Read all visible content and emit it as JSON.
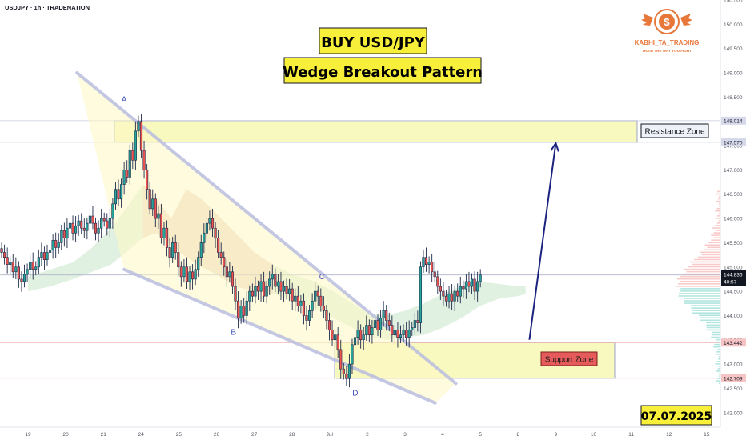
{
  "header": {
    "symbol_info": "USDJPY · 1h · TRADENATION"
  },
  "colors": {
    "bull": "#26a69a",
    "bear": "#ef5350",
    "candle_outline": "#1f2a4a",
    "cloud_green": "#c8e6c9",
    "cloud_red": "#f8c9c1",
    "wedge_line": "#b9bddf",
    "zone_fill": "#f6f7a8",
    "zone_border": "#9aa3c8",
    "arrow": "#1a237e",
    "price_badge": "#131722",
    "title_box": "#f7ef3a",
    "support_label_bg": "#e55a5a",
    "logo_orange": "#e8773a"
  },
  "logo": {
    "name": "KABHI_TA_TRADING",
    "tagline": "TRAIN THE WAY YOU FIGHT",
    "symbol": "$"
  },
  "chart_data": {
    "type": "candlestick",
    "title": "BUY USD/JPY",
    "subtitle": "Wedge Breakout Pattern",
    "date_label": "07.07.2025",
    "ylim": [
      141.7,
      150.5
    ],
    "y_ticks": [
      "142.000",
      "142.500",
      "143.000",
      "143.500",
      "144.000",
      "144.500",
      "145.000",
      "145.500",
      "146.000",
      "146.500",
      "147.000",
      "147.500",
      "148.000",
      "148.500",
      "149.000",
      "149.500",
      "150.000",
      "150.500"
    ],
    "x_ticks": [
      {
        "label": "19",
        "day": 0
      },
      {
        "label": "20",
        "day": 1
      },
      {
        "label": "21",
        "day": 2
      },
      {
        "label": "24",
        "day": 3
      },
      {
        "label": "25",
        "day": 4
      },
      {
        "label": "26",
        "day": 5
      },
      {
        "label": "27",
        "day": 6
      },
      {
        "label": "28",
        "day": 7
      },
      {
        "label": "Jul",
        "day": 8
      },
      {
        "label": "2",
        "day": 9
      },
      {
        "label": "3",
        "day": 10
      },
      {
        "label": "4",
        "day": 11
      },
      {
        "label": "5",
        "day": 12
      },
      {
        "label": "8",
        "day": 13
      },
      {
        "label": "9",
        "day": 14
      },
      {
        "label": "10",
        "day": 15
      },
      {
        "label": "11",
        "day": 16
      },
      {
        "label": "12",
        "day": 17
      },
      {
        "label": "15",
        "day": 18
      }
    ],
    "price_labels": [
      {
        "value": "148.014",
        "price": 148.014
      },
      {
        "value": "147.570",
        "price": 147.57
      },
      {
        "value": "143.442",
        "price": 143.442
      },
      {
        "value": "142.709",
        "price": 142.709
      }
    ],
    "current_price": {
      "value": "144.836",
      "countdown": "40:57",
      "price": 144.836
    },
    "points": [
      {
        "label": "A",
        "day": 2.55,
        "price": 148.4
      },
      {
        "label": "B",
        "day": 5.45,
        "price": 143.6
      },
      {
        "label": "C",
        "day": 7.8,
        "price": 144.75
      },
      {
        "label": "D",
        "day": 8.68,
        "price": 142.35
      }
    ],
    "zones": [
      {
        "name": "Resistance Zone",
        "top": 148.014,
        "bottom": 147.57
      },
      {
        "name": "Support Zone",
        "top": 143.442,
        "bottom": 142.709
      }
    ],
    "wedge_lines": [
      {
        "from": {
          "day": 1.3,
          "price": 149.0
        },
        "to": {
          "day": 11.35,
          "price": 142.6
        }
      },
      {
        "from": {
          "day": 2.55,
          "price": 144.95
        },
        "to": {
          "day": 10.8,
          "price": 142.2
        }
      }
    ],
    "target_arrow": {
      "from": {
        "day": 13.3,
        "price": 143.5
      },
      "to": {
        "day": 14.0,
        "price": 147.55
      }
    },
    "closes": [
      145.3,
      145.2,
      145.05,
      145.1,
      144.9,
      145.0,
      144.75,
      144.7,
      144.85,
      144.95,
      145.1,
      144.95,
      145.0,
      145.2,
      145.3,
      145.15,
      145.3,
      145.35,
      145.55,
      145.4,
      145.5,
      145.75,
      145.6,
      145.8,
      145.9,
      145.7,
      145.85,
      145.95,
      145.8,
      145.75,
      145.9,
      146.05,
      145.9,
      145.7,
      145.8,
      146.0,
      145.95,
      145.8,
      146.0,
      146.3,
      146.6,
      146.4,
      146.7,
      147.0,
      146.85,
      147.4,
      147.2,
      147.8,
      148.0,
      147.4,
      147.0,
      146.6,
      146.2,
      146.4,
      146.0,
      146.1,
      145.6,
      145.8,
      145.4,
      145.2,
      145.5,
      145.3,
      145.0,
      144.8,
      145.0,
      144.7,
      144.9,
      144.75,
      144.95,
      145.2,
      145.5,
      145.7,
      145.9,
      146.0,
      145.8,
      145.6,
      145.3,
      145.2,
      145.0,
      144.8,
      144.9,
      144.6,
      144.3,
      143.95,
      144.2,
      144.0,
      144.3,
      144.5,
      144.4,
      144.6,
      144.5,
      144.7,
      144.4,
      144.6,
      144.75,
      144.85,
      144.6,
      144.7,
      144.5,
      144.6,
      144.45,
      144.55,
      144.3,
      144.4,
      144.2,
      144.3,
      144.0,
      143.9,
      144.1,
      144.3,
      144.5,
      144.4,
      144.2,
      144.1,
      143.9,
      143.7,
      143.5,
      143.6,
      143.3,
      142.9,
      142.8,
      142.7,
      143.0,
      143.4,
      143.55,
      143.7,
      143.5,
      143.6,
      143.8,
      143.6,
      143.75,
      143.9,
      143.7,
      143.95,
      144.1,
      143.9,
      143.8,
      143.6,
      143.7,
      143.55,
      143.6,
      143.7,
      143.55,
      143.7,
      143.75,
      143.9,
      143.85,
      145.0,
      145.2,
      145.05,
      145.1,
      144.9,
      144.8,
      144.6,
      144.5,
      144.4,
      144.3,
      144.45,
      144.3,
      144.5,
      144.4,
      144.6,
      144.55,
      144.7,
      144.6,
      144.75,
      144.5,
      144.7,
      144.836
    ],
    "cloud_upper": [
      {
        "day": 0.0,
        "price": 144.8
      },
      {
        "day": 0.6,
        "price": 144.95
      },
      {
        "day": 1.2,
        "price": 145.1
      },
      {
        "day": 1.7,
        "price": 145.4
      },
      {
        "day": 2.2,
        "price": 145.8
      },
      {
        "day": 2.6,
        "price": 146.2
      },
      {
        "day": 3.05,
        "price": 146.7
      },
      {
        "day": 3.4,
        "price": 146.4
      },
      {
        "day": 3.8,
        "price": 146.0
      },
      {
        "day": 4.2,
        "price": 146.6
      },
      {
        "day": 4.6,
        "price": 146.4
      },
      {
        "day": 5.0,
        "price": 146.1
      },
      {
        "day": 5.5,
        "price": 145.7
      },
      {
        "day": 6.0,
        "price": 145.3
      },
      {
        "day": 6.5,
        "price": 145.05
      },
      {
        "day": 7.0,
        "price": 144.85
      },
      {
        "day": 7.6,
        "price": 144.7
      },
      {
        "day": 8.1,
        "price": 144.5
      },
      {
        "day": 8.6,
        "price": 144.25
      },
      {
        "day": 9.0,
        "price": 144.05
      },
      {
        "day": 9.5,
        "price": 144.0
      },
      {
        "day": 10.0,
        "price": 144.1
      },
      {
        "day": 10.5,
        "price": 144.25
      },
      {
        "day": 11.0,
        "price": 144.45
      },
      {
        "day": 11.5,
        "price": 144.6
      },
      {
        "day": 12.0,
        "price": 144.7
      },
      {
        "day": 12.5,
        "price": 144.65
      },
      {
        "day": 13.0,
        "price": 144.6
      },
      {
        "day": 13.2,
        "price": 144.6
      }
    ],
    "cloud_lower": [
      {
        "day": 0.0,
        "price": 144.5
      },
      {
        "day": 0.6,
        "price": 144.6
      },
      {
        "day": 1.2,
        "price": 144.75
      },
      {
        "day": 1.7,
        "price": 144.9
      },
      {
        "day": 2.2,
        "price": 145.05
      },
      {
        "day": 2.6,
        "price": 145.3
      },
      {
        "day": 3.05,
        "price": 145.6
      },
      {
        "day": 3.4,
        "price": 145.7
      },
      {
        "day": 3.8,
        "price": 145.45
      },
      {
        "day": 4.2,
        "price": 145.2
      },
      {
        "day": 4.6,
        "price": 145.0
      },
      {
        "day": 5.0,
        "price": 144.85
      },
      {
        "day": 5.5,
        "price": 144.6
      },
      {
        "day": 6.0,
        "price": 144.5
      },
      {
        "day": 6.5,
        "price": 144.45
      },
      {
        "day": 7.0,
        "price": 144.3
      },
      {
        "day": 7.6,
        "price": 144.15
      },
      {
        "day": 8.1,
        "price": 143.95
      },
      {
        "day": 8.6,
        "price": 143.75
      },
      {
        "day": 9.0,
        "price": 143.6
      },
      {
        "day": 9.5,
        "price": 143.5
      },
      {
        "day": 10.0,
        "price": 143.55
      },
      {
        "day": 10.5,
        "price": 143.6
      },
      {
        "day": 11.0,
        "price": 143.75
      },
      {
        "day": 11.5,
        "price": 143.95
      },
      {
        "day": 12.0,
        "price": 144.2
      },
      {
        "day": 12.5,
        "price": 144.35
      },
      {
        "day": 13.0,
        "price": 144.4
      },
      {
        "day": 13.2,
        "price": 144.45
      }
    ]
  }
}
